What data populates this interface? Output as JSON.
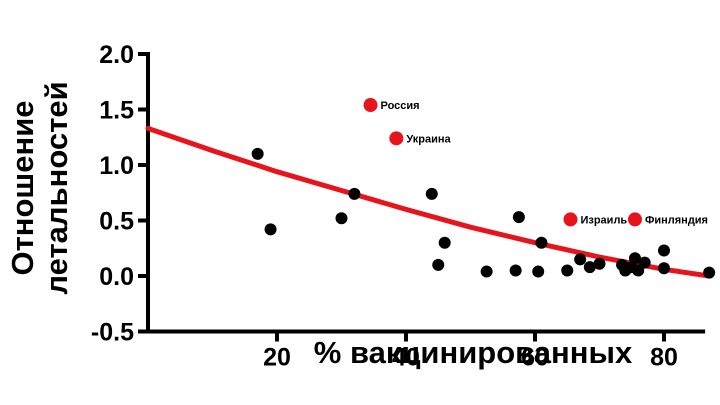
{
  "chart_data": {
    "type": "scatter",
    "title": "",
    "xlabel": "% вакцинированных",
    "ylabel_lines": [
      "Отношение",
      "летальностей"
    ],
    "xlim": [
      0,
      87
    ],
    "ylim": [
      -0.5,
      2.0
    ],
    "x_ticks": [
      20,
      40,
      60,
      80
    ],
    "y_ticks": [
      2.0,
      1.5,
      1.0,
      0.5,
      0.0,
      -0.5
    ],
    "y_tick_labels": [
      "2.0",
      "1.5",
      "1.0",
      "0.5",
      "0.0",
      "-0.5"
    ],
    "grid": false,
    "colors": {
      "points": "#000000",
      "highlight": "#e8141c",
      "trend": "#e8141c"
    },
    "points": [
      {
        "x": 17,
        "y": 1.1
      },
      {
        "x": 19,
        "y": 0.42
      },
      {
        "x": 30,
        "y": 0.52
      },
      {
        "x": 32,
        "y": 0.74
      },
      {
        "x": 44,
        "y": 0.74
      },
      {
        "x": 45,
        "y": 0.1
      },
      {
        "x": 46,
        "y": 0.3
      },
      {
        "x": 52.5,
        "y": 0.04
      },
      {
        "x": 57,
        "y": 0.05
      },
      {
        "x": 57.5,
        "y": 0.53
      },
      {
        "x": 60.5,
        "y": 0.04
      },
      {
        "x": 61,
        "y": 0.3
      },
      {
        "x": 65,
        "y": 0.05
      },
      {
        "x": 67,
        "y": 0.15
      },
      {
        "x": 68.5,
        "y": 0.08
      },
      {
        "x": 70,
        "y": 0.11
      },
      {
        "x": 73.5,
        "y": 0.1
      },
      {
        "x": 74,
        "y": 0.05
      },
      {
        "x": 75,
        "y": 0.08
      },
      {
        "x": 75.5,
        "y": 0.16
      },
      {
        "x": 76,
        "y": 0.05
      },
      {
        "x": 77,
        "y": 0.12
      },
      {
        "x": 80,
        "y": 0.23
      },
      {
        "x": 80,
        "y": 0.07
      },
      {
        "x": 87,
        "y": 0.03
      }
    ],
    "highlighted": [
      {
        "label": "Россия",
        "x": 34.5,
        "y": 1.54
      },
      {
        "label": "Украина",
        "x": 38.5,
        "y": 1.24
      },
      {
        "label": "Израиль",
        "x": 65.5,
        "y": 0.51
      },
      {
        "label": "Финляндия",
        "x": 75.5,
        "y": 0.51
      }
    ],
    "trend_line": {
      "x": [
        0,
        10,
        20,
        30,
        40,
        50,
        60,
        70,
        80,
        87
      ],
      "y": [
        1.33,
        1.13,
        0.94,
        0.77,
        0.6,
        0.44,
        0.3,
        0.17,
        0.06,
        0.0
      ]
    }
  }
}
